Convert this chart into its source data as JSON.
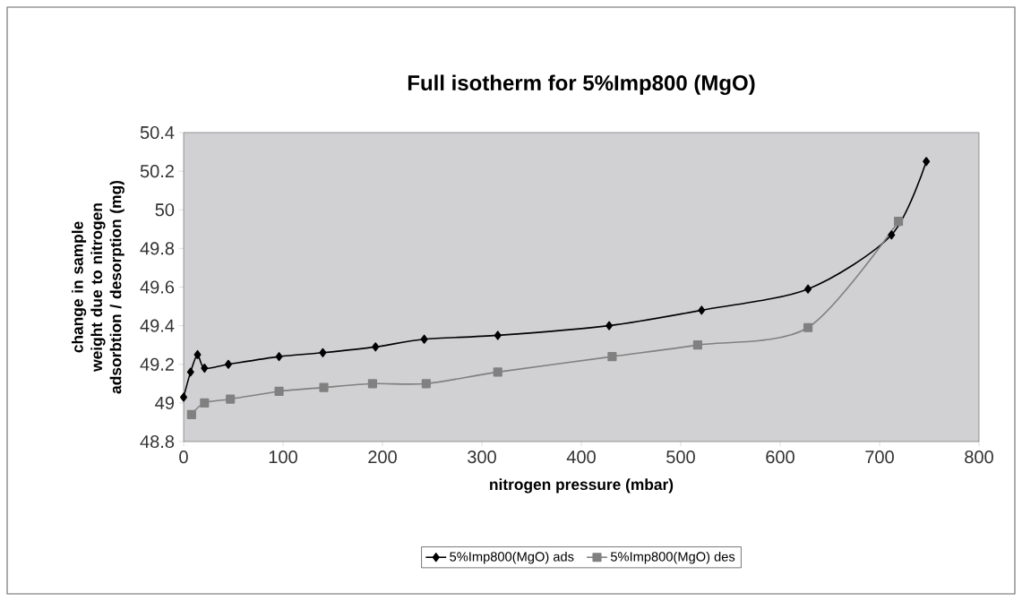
{
  "chart_data": {
    "type": "line",
    "title": "Full isotherm for 5%Imp800 (MgO)",
    "xlabel": "nitrogen pressure (mbar)",
    "ylabel": "change in sample weight due to nitrogen adsorbtion / desorption (mg)",
    "xlim": [
      0,
      800
    ],
    "xticks": [
      0,
      100,
      200,
      300,
      400,
      500,
      600,
      700,
      800
    ],
    "ylim": [
      48.8,
      50.4
    ],
    "yticks": [
      48.8,
      49,
      49.2,
      49.4,
      49.6,
      49.8,
      50,
      50.2,
      50.4
    ],
    "legend": "bottom",
    "line_style": "solid",
    "series": [
      {
        "name": "5%Imp800(MgO) ads",
        "color": "#000000",
        "marker": "diamond",
        "x": [
          0,
          7,
          14,
          21,
          45,
          96,
          140,
          193,
          242,
          316,
          428,
          521,
          628,
          712,
          747
        ],
        "values": [
          49.03,
          49.16,
          49.25,
          49.18,
          49.2,
          49.24,
          49.26,
          49.29,
          49.33,
          49.35,
          49.4,
          49.48,
          49.59,
          49.87,
          50.25
        ]
      },
      {
        "name": "5%Imp800(MgO) des",
        "color": "#808080",
        "marker": "square",
        "x": [
          8,
          21,
          47,
          96,
          141,
          190,
          244,
          316,
          431,
          517,
          628,
          719
        ],
        "values": [
          48.94,
          49.0,
          49.02,
          49.06,
          49.08,
          49.1,
          49.1,
          49.16,
          49.24,
          49.3,
          49.39,
          49.94
        ]
      }
    ]
  }
}
